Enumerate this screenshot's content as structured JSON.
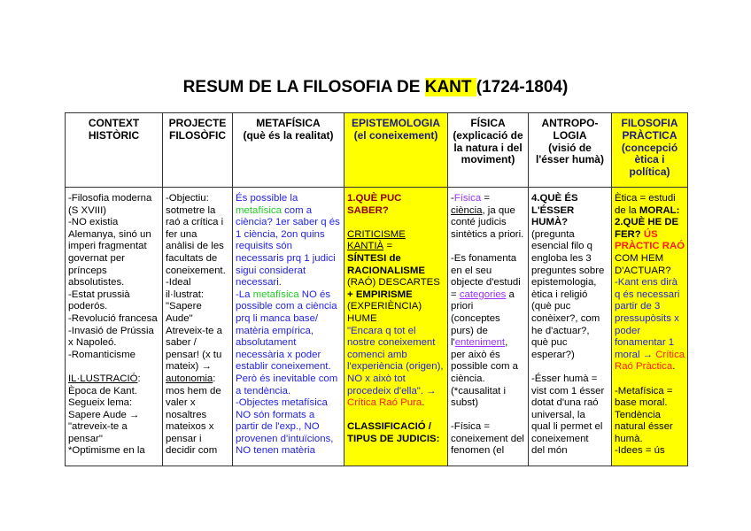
{
  "title": {
    "prefix": "RESUM DE LA FILOSOFIA DE ",
    "highlight": "KANT ",
    "suffix": "(1724-1804)"
  },
  "colors": {
    "highlight": "#ffff00",
    "blue": "#1f1fe6",
    "green": "#22cc22",
    "red": "#ff1a1a",
    "purple": "#9b30ff",
    "dark_red": "#8b0000"
  },
  "columns": [
    {
      "header": [
        "CONTEXT",
        "HISTÒRIC"
      ],
      "yellow": false,
      "body": [
        [
          "-Filosofia moderna"
        ],
        [
          "(S XVIII)"
        ],
        [
          "-NO existia"
        ],
        [
          "Alemanya, sinó un"
        ],
        [
          "imperi fragmentat"
        ],
        [
          "governat per"
        ],
        [
          "prínceps"
        ],
        [
          "absolutistes."
        ],
        [
          "-Estat prussià"
        ],
        [
          "poderós."
        ],
        [
          "-Revolució francesa"
        ],
        [
          "-Invasió de Prússia"
        ],
        [
          "x Napoleó."
        ],
        [
          "-Romanticisme"
        ],
        [
          ""
        ],
        [
          [
            "IL·LUSTRACIÓ",
            "u"
          ],
          ":"
        ],
        [
          "Època de Kant."
        ],
        [
          "Segueix lema:"
        ],
        [
          "Sapere Aude →"
        ],
        [
          "\"atreveix-te a"
        ],
        [
          "pensar\""
        ],
        [
          "*Optimisme en la"
        ]
      ]
    },
    {
      "header": [
        "PROJECTE",
        "FILOSÒFIC"
      ],
      "yellow": false,
      "body": [
        [
          "-Objectiu:"
        ],
        [
          "sotmetre la"
        ],
        [
          "raó a crítica i"
        ],
        [
          "fer una"
        ],
        [
          "anàlisi de les"
        ],
        [
          "facultats de"
        ],
        [
          "coneixement."
        ],
        [
          "-Ideal"
        ],
        [
          "il·lustrat:"
        ],
        [
          "\"Sapere"
        ],
        [
          "Aude\""
        ],
        [
          "Atreveix-te a"
        ],
        [
          "saber /"
        ],
        [
          "pensar! (x tu"
        ],
        [
          "mateix) →"
        ],
        [
          [
            "autonomia",
            "u"
          ],
          ":"
        ],
        [
          "mos hem de"
        ],
        [
          "valer x"
        ],
        [
          "nosaltres"
        ],
        [
          "mateixos x"
        ],
        [
          "pensar i"
        ],
        [
          "decidir com"
        ]
      ]
    },
    {
      "header": [
        "METAFÍSICA",
        "(què és la realitat)"
      ],
      "yellow": false,
      "body": [
        [
          [
            "És possible la",
            "blue"
          ]
        ],
        [
          [
            "metafísica",
            "green"
          ],
          [
            " com a",
            "blue"
          ]
        ],
        [
          [
            "ciència? 1er saber q és",
            "blue"
          ]
        ],
        [
          [
            "1 ciència, 2on quins",
            "blue"
          ]
        ],
        [
          [
            "requisits són",
            "blue"
          ]
        ],
        [
          [
            "necessaris prq 1 judici",
            "blue"
          ]
        ],
        [
          [
            "sigui considerat",
            "blue"
          ]
        ],
        [
          [
            "necessari.",
            "blue"
          ]
        ],
        [
          [
            "-La ",
            "blue"
          ],
          [
            "metafísica",
            "green"
          ],
          [
            " NO és",
            "blue"
          ]
        ],
        [
          [
            "possible com a ciència",
            "blue"
          ]
        ],
        [
          [
            "prq li manca base/",
            "blue"
          ]
        ],
        [
          [
            "matèria empírica,",
            "blue"
          ]
        ],
        [
          [
            "absolutament",
            "blue"
          ]
        ],
        [
          [
            "necessària x poder",
            "blue"
          ]
        ],
        [
          [
            "establir coneixement.",
            "blue"
          ]
        ],
        [
          [
            "Però és inevitable com",
            "blue"
          ]
        ],
        [
          [
            "a tendència.",
            "blue"
          ]
        ],
        [
          [
            "-Objectes metafísica",
            "blue"
          ]
        ],
        [
          [
            "NO són formats a",
            "blue"
          ]
        ],
        [
          [
            "partir de l'exp., NO",
            "blue"
          ]
        ],
        [
          [
            "provenen d'intuïcions,",
            "blue"
          ]
        ],
        [
          [
            "NO tenen matèria",
            "blue"
          ]
        ]
      ]
    },
    {
      "header": [
        "EPISTEMOLOGIA",
        "(el coneixement)"
      ],
      "yellow": true,
      "body": [
        [
          [
            "1.QUÈ PUC",
            "b dred"
          ]
        ],
        [
          [
            "SABER?",
            "b dred"
          ]
        ],
        [
          ""
        ],
        [
          [
            "CRITICISME",
            "u"
          ]
        ],
        [
          [
            "KANTIÀ",
            "u"
          ],
          " ="
        ],
        [
          [
            "SÍNTESI de",
            "b"
          ]
        ],
        [
          [
            "RACIONALISME",
            "b"
          ]
        ],
        [
          "(RAÓ) DESCARTES"
        ],
        [
          [
            "+ EMPIRISME",
            "b"
          ]
        ],
        [
          "(EXPERIÈNCIA)"
        ],
        [
          "HUME"
        ],
        [
          [
            "\"Encara q tot el",
            "blue"
          ]
        ],
        [
          [
            "nostre coneixement",
            "blue"
          ]
        ],
        [
          [
            "comenci amb",
            "blue"
          ]
        ],
        [
          [
            "l'experiència (origen),",
            "blue"
          ]
        ],
        [
          [
            "NO x això tot",
            "blue"
          ]
        ],
        [
          [
            "procedeix d'ella\". →",
            "blue"
          ]
        ],
        [
          [
            "Crítica Raó Pura",
            "red"
          ],
          [
            "."
          ]
        ],
        [
          ""
        ],
        [
          [
            "CLASSIFICACIÓ /",
            "b"
          ]
        ],
        [
          [
            "TIPUS DE JUDICIS:",
            "b"
          ]
        ]
      ]
    },
    {
      "header": [
        "FÍSICA",
        "(explicació de",
        "la natura i del",
        "moviment)"
      ],
      "yellow": false,
      "body": [
        [
          "-",
          [
            "Física",
            "purple"
          ],
          " ="
        ],
        [
          [
            "ciència",
            "u"
          ],
          ", ja que"
        ],
        [
          "conté judicis"
        ],
        [
          "sintètics a priori."
        ],
        [
          ""
        ],
        [
          "-Es fonamenta"
        ],
        [
          "en el seu"
        ],
        [
          "objecte d'estudi"
        ],
        [
          "= ",
          [
            "categories",
            "purple u"
          ],
          " a"
        ],
        [
          "priori"
        ],
        [
          "(conceptes"
        ],
        [
          "purs) de"
        ],
        [
          "l'",
          [
            "enteniment",
            "purple u"
          ],
          ","
        ],
        [
          "per això és"
        ],
        [
          "possible com a"
        ],
        [
          "ciència."
        ],
        [
          "(*causalitat i"
        ],
        [
          "subst)"
        ],
        [
          ""
        ],
        [
          "-Física ="
        ],
        [
          "coneixement del"
        ],
        [
          "fenomen (el"
        ]
      ]
    },
    {
      "header": [
        "ANTROPO-",
        "LOGIA",
        "(visió de",
        "l'ésser humà)"
      ],
      "yellow": false,
      "body": [
        [
          [
            "4.QUÈ ÉS",
            "b"
          ]
        ],
        [
          [
            "L'ÉSSER",
            "b"
          ]
        ],
        [
          [
            "HUMÀ?",
            "b"
          ]
        ],
        [
          "(pregunta"
        ],
        [
          "esencial filo q"
        ],
        [
          "engloba les 3"
        ],
        [
          "preguntes sobre"
        ],
        [
          "epistemologia,"
        ],
        [
          "ètica i religió"
        ],
        [
          "(què puc"
        ],
        [
          "conèixer?, com"
        ],
        [
          "he d'actuar?,"
        ],
        [
          "què puc"
        ],
        [
          "esperar?)"
        ],
        [
          ""
        ],
        [
          "-Ésser humà ="
        ],
        [
          "vist com 1 ésser"
        ],
        [
          "dotat d'una raó"
        ],
        [
          "universal, la"
        ],
        [
          "qual li permet el"
        ],
        [
          "coneixement"
        ],
        [
          "del món"
        ]
      ]
    },
    {
      "header": [
        "FILOSOFIA",
        "PRÀCTICA",
        "(concepció",
        "ètica i",
        "política)"
      ],
      "yellow": true,
      "body": [
        [
          "Ètica = estudi"
        ],
        [
          "de la ",
          [
            "MORAL:",
            "b"
          ]
        ],
        [
          [
            "2.QUÈ HE DE",
            "b"
          ]
        ],
        [
          [
            "FER? ",
            "b"
          ],
          [
            "ÚS",
            "b red"
          ]
        ],
        [
          [
            "PRÀCTIC RAÓ",
            "b red"
          ]
        ],
        [
          "COM HEM"
        ],
        [
          "D'ACTUAR?"
        ],
        [
          [
            "-Kant ens dirà",
            "blue"
          ]
        ],
        [
          [
            "q és necessari",
            "blue"
          ]
        ],
        [
          [
            "partir de 3",
            "blue"
          ]
        ],
        [
          [
            "pressupòsits x",
            "blue"
          ]
        ],
        [
          [
            "poder",
            "blue"
          ]
        ],
        [
          [
            "fonamentar 1",
            "blue"
          ]
        ],
        [
          [
            "moral → ",
            "blue"
          ],
          [
            "Crítica",
            "red"
          ]
        ],
        [
          [
            "Raó Pràctica",
            "red"
          ],
          [
            "."
          ]
        ],
        [
          ""
        ],
        [
          "-Metafísica ="
        ],
        [
          "base moral."
        ],
        [
          "Tendència"
        ],
        [
          "natural ésser"
        ],
        [
          "humà."
        ],
        [
          "-Idees = ús"
        ]
      ]
    }
  ]
}
